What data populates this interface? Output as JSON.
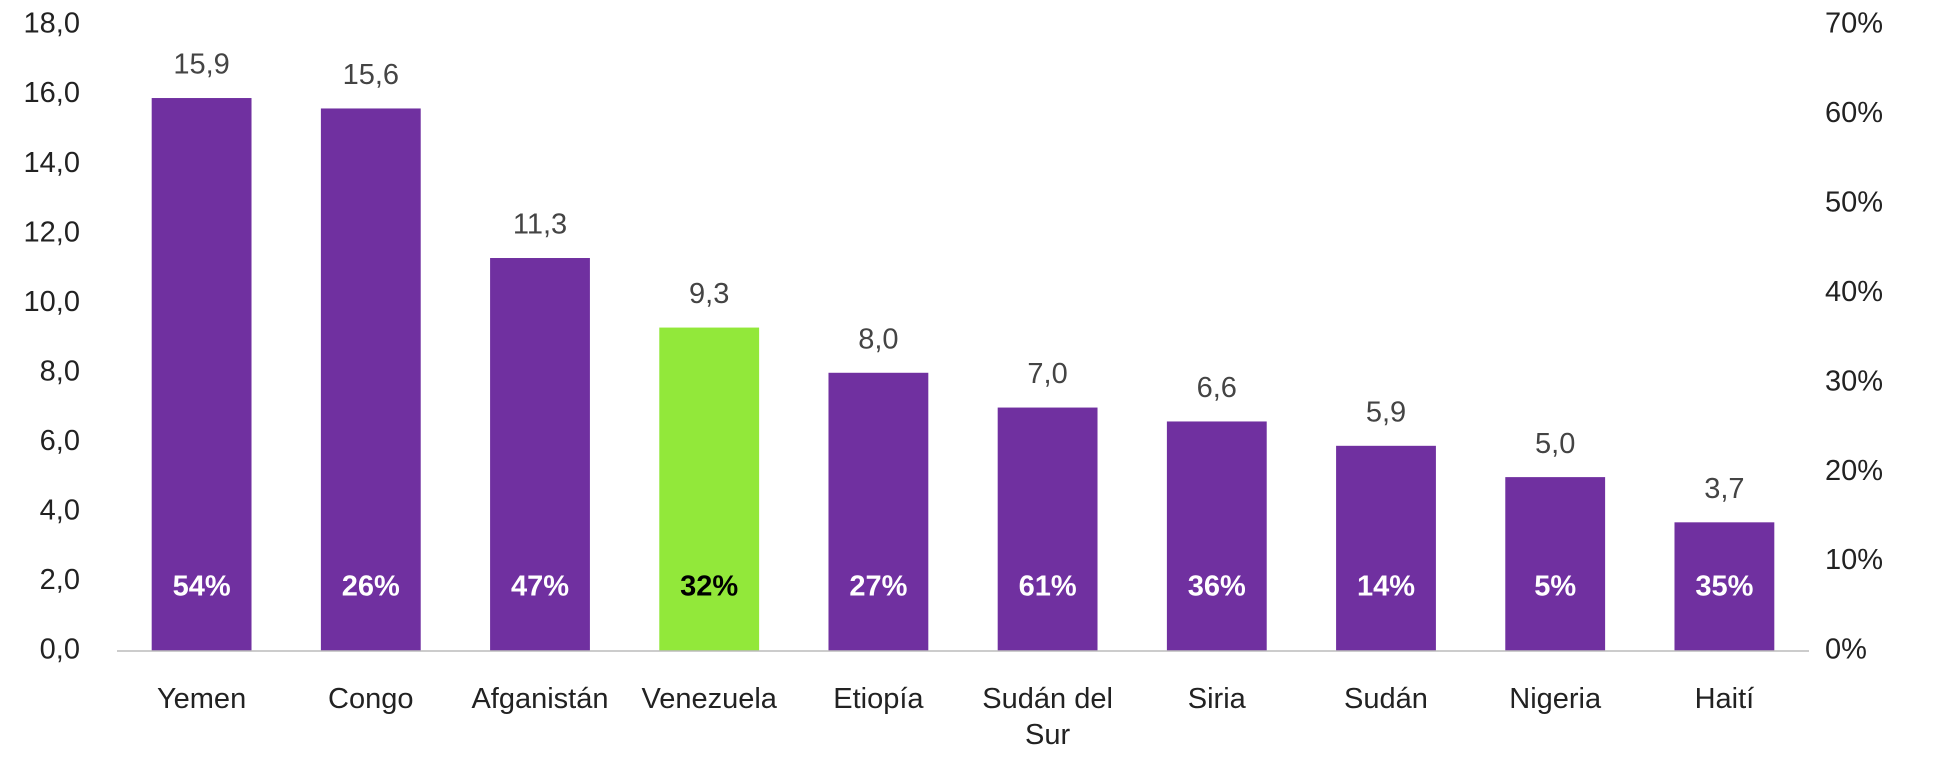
{
  "chart_data": {
    "type": "bar",
    "categories": [
      "Yemen",
      "Congo",
      "Afganistán",
      "Venezuela",
      "Etiopía",
      "Sudán del Sur",
      "Siria",
      "Sudán",
      "Nigeria",
      "Haití"
    ],
    "series": [
      {
        "colors": [
          "#7030a0",
          "#7030a0",
          "#7030a0",
          "#92e83a",
          "#7030a0",
          "#7030a0",
          "#7030a0",
          "#7030a0",
          "#7030a0",
          "#7030a0"
        ],
        "values": [
          15.9,
          15.6,
          11.3,
          9.3,
          8.0,
          7.0,
          6.6,
          5.9,
          5.0,
          3.7
        ],
        "value_labels": [
          "15,9",
          "15,6",
          "11,3",
          "9,3",
          "8,0",
          "7,0",
          "6,6",
          "5,9",
          "5,0",
          "3,7"
        ]
      },
      {
        "axis": "y2",
        "label_colors": [
          "#ffffff",
          "#ffffff",
          "#ffffff",
          "#000000",
          "#ffffff",
          "#ffffff",
          "#ffffff",
          "#ffffff",
          "#ffffff",
          "#ffffff"
        ],
        "values": [
          54,
          26,
          47,
          32,
          27,
          61,
          36,
          14,
          5,
          35
        ],
        "value_labels": [
          "54%",
          "26%",
          "47%",
          "32%",
          "27%",
          "61%",
          "36%",
          "14%",
          "5%",
          "35%"
        ]
      }
    ],
    "ylim": [
      0,
      18
    ],
    "yticks": [
      {
        "value": 0,
        "label": "0,0"
      },
      {
        "value": 2,
        "label": "2,0"
      },
      {
        "value": 4,
        "label": "4,0"
      },
      {
        "value": 6,
        "label": "6,0"
      },
      {
        "value": 8,
        "label": "8,0"
      },
      {
        "value": 10,
        "label": "10,0"
      },
      {
        "value": 12,
        "label": "12,0"
      },
      {
        "value": 14,
        "label": "14,0"
      },
      {
        "value": 16,
        "label": "16,0"
      },
      {
        "value": 18,
        "label": "18,0"
      }
    ],
    "y2lim": [
      0,
      70
    ],
    "y2ticks": [
      {
        "value": 0,
        "label": "0%"
      },
      {
        "value": 10,
        "label": "10%"
      },
      {
        "value": 20,
        "label": "20%"
      },
      {
        "value": 30,
        "label": "30%"
      },
      {
        "value": 40,
        "label": "40%"
      },
      {
        "value": 50,
        "label": "50%"
      },
      {
        "value": 60,
        "label": "60%"
      },
      {
        "value": 70,
        "label": "70%"
      }
    ]
  }
}
